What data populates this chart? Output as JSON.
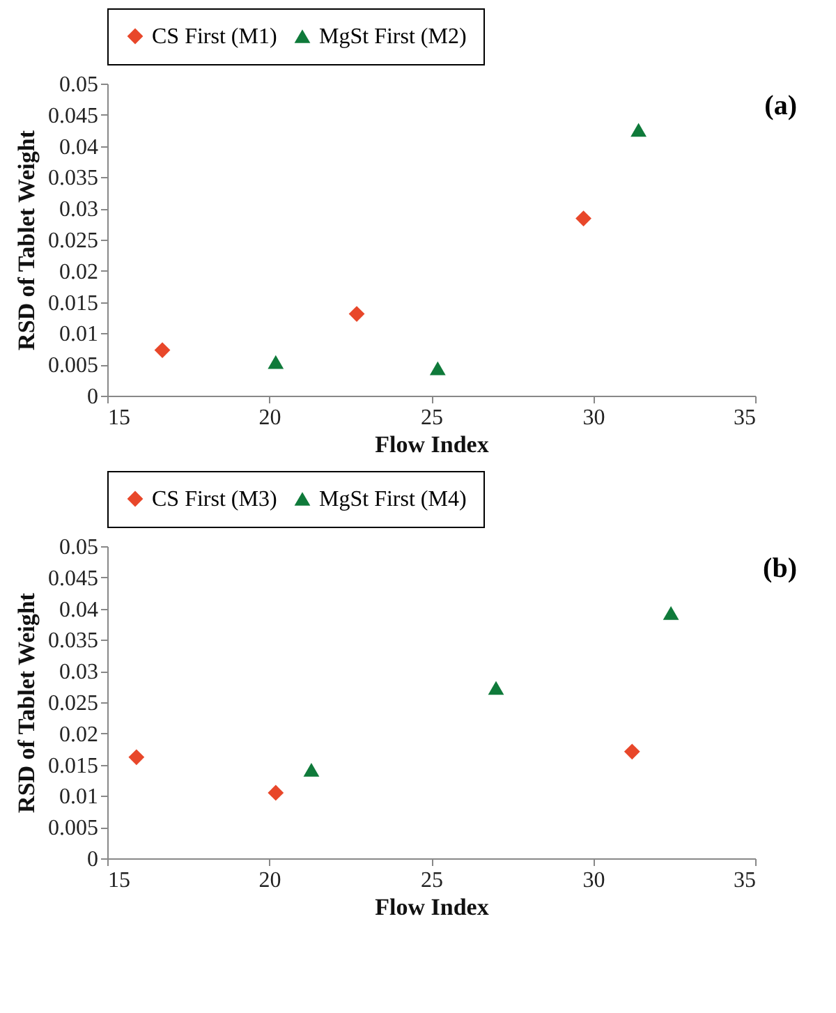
{
  "chart_data": [
    {
      "type": "scatter",
      "xlabel": "Flow Index",
      "ylabel": "RSD of Tablet Weight",
      "annotations": [
        "(a)"
      ],
      "xlim": [
        15,
        35
      ],
      "xticks": [
        15,
        20,
        25,
        30,
        35
      ],
      "ylim": [
        0,
        0.05
      ],
      "yticks": [
        0,
        0.005,
        0.01,
        0.015,
        0.02,
        0.025,
        0.03,
        0.035,
        0.04,
        0.045,
        0.05
      ],
      "grid": false,
      "legend": "top",
      "series": [
        {
          "name": "CS First (M1)",
          "color": "#e8472a",
          "marker": "diamond",
          "x": [
            16.7,
            22.7,
            29.7
          ],
          "values": [
            0.0073,
            0.0131,
            0.0284
          ]
        },
        {
          "name": "MgSt First (M2)",
          "color": "#0f7a3a",
          "marker": "triangle",
          "x": [
            20.2,
            25.2,
            31.4
          ],
          "values": [
            0.0054,
            0.0044,
            0.0426
          ]
        }
      ]
    },
    {
      "type": "scatter",
      "xlabel": "Flow Index",
      "ylabel": "RSD of Tablet Weight",
      "annotations": [
        "(b)"
      ],
      "xlim": [
        15,
        35
      ],
      "xticks": [
        15,
        20,
        25,
        30,
        35
      ],
      "ylim": [
        0,
        0.05
      ],
      "yticks": [
        0,
        0.005,
        0.01,
        0.015,
        0.02,
        0.025,
        0.03,
        0.035,
        0.04,
        0.045,
        0.05
      ],
      "grid": false,
      "legend": "top",
      "series": [
        {
          "name": "CS First (M3)",
          "color": "#e8472a",
          "marker": "diamond",
          "x": [
            15.9,
            20.2,
            31.2
          ],
          "values": [
            0.0162,
            0.0105,
            0.0171
          ]
        },
        {
          "name": "MgSt First (M4)",
          "color": "#0f7a3a",
          "marker": "triangle",
          "x": [
            21.3,
            27.0,
            32.4
          ],
          "values": [
            0.0142,
            0.0273,
            0.0393
          ]
        }
      ]
    }
  ]
}
